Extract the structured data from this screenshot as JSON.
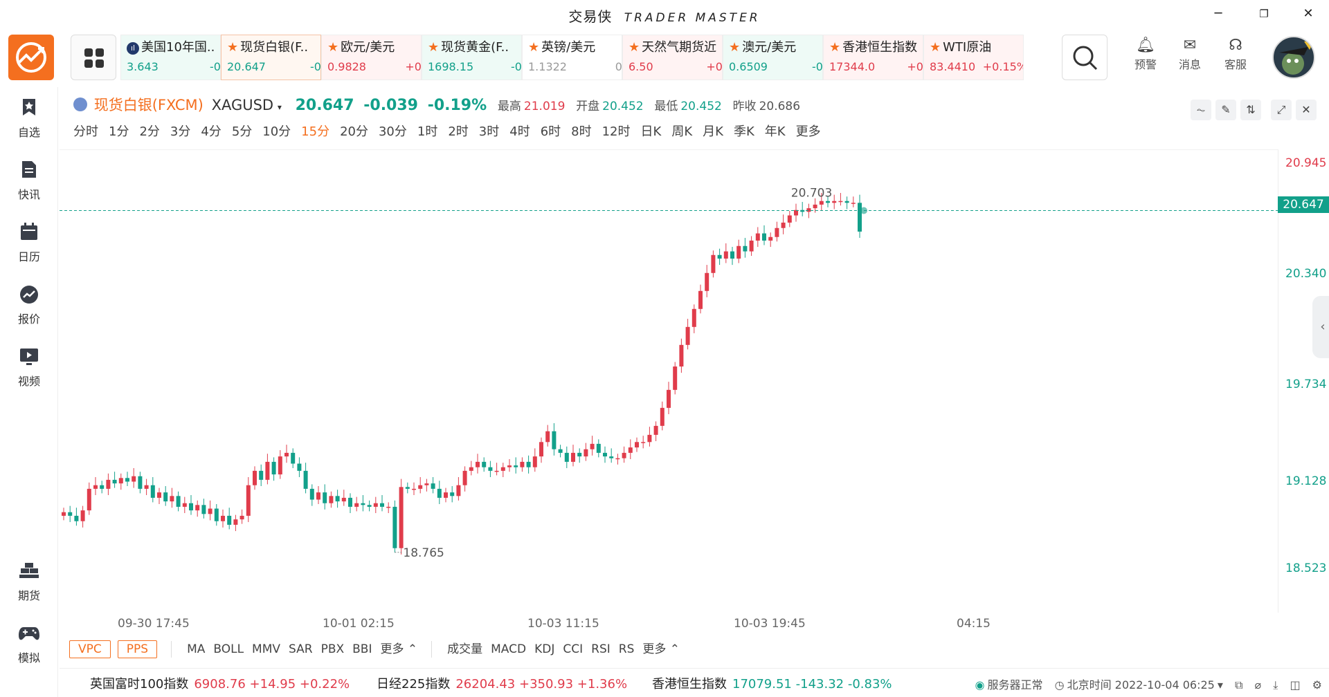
{
  "window": {
    "title_cn": "交易侠",
    "title_en": "TRADER MASTER",
    "minimize": "─",
    "restore": "❐",
    "close": "✕"
  },
  "ticker": [
    {
      "name": "美国10年国..",
      "price": "3.643",
      "change": "-0.",
      "dir": "down",
      "icon": "bar-chart-icon",
      "bg": "down"
    },
    {
      "name": "现货白银(F..",
      "price": "20.647",
      "change": "-0.",
      "dir": "down",
      "icon": "star-icon",
      "bg": "sel"
    },
    {
      "name": "欧元/美元",
      "price": "0.9828",
      "change": "+0.",
      "dir": "up",
      "icon": "star-icon",
      "bg": "up"
    },
    {
      "name": "现货黄金(F..",
      "price": "1698.15",
      "change": "-0.",
      "dir": "down",
      "icon": "star-icon",
      "bg": "down"
    },
    {
      "name": "英镑/美元",
      "price": "1.1322",
      "change": "0.",
      "dir": "flat",
      "icon": "star-icon",
      "bg": "none"
    },
    {
      "name": "天然气期货近",
      "price": "6.50",
      "change": "+0.",
      "dir": "up",
      "icon": "star-icon",
      "bg": "up"
    },
    {
      "name": "澳元/美元",
      "price": "0.6509",
      "change": "-0.",
      "dir": "down",
      "icon": "star-icon",
      "bg": "down"
    },
    {
      "name": "香港恒生指数",
      "price": "17344.0",
      "change": "+0.",
      "dir": "up",
      "icon": "star-icon",
      "bg": "up"
    },
    {
      "name": "WTI原油",
      "price": "83.4410",
      "change": "+0.15%",
      "dir": "up",
      "icon": "star-icon",
      "bg": "up"
    }
  ],
  "header_icons": [
    {
      "label": "预警",
      "icon": "bell-icon"
    },
    {
      "label": "消息",
      "icon": "mail-icon"
    },
    {
      "label": "客服",
      "icon": "headset-icon"
    }
  ],
  "sidebar": {
    "top": [
      {
        "label": "自选",
        "icon": "bookmark-icon"
      },
      {
        "label": "快讯",
        "icon": "document-icon"
      },
      {
        "label": "日历",
        "icon": "calendar-icon"
      },
      {
        "label": "报价",
        "icon": "trend-icon"
      },
      {
        "label": "视频",
        "icon": "video-icon"
      }
    ],
    "bottom": [
      {
        "label": "期货",
        "icon": "gold-bars-icon"
      },
      {
        "label": "模拟",
        "icon": "gamepad-icon"
      }
    ]
  },
  "symbol": {
    "name": "现货白银(FXCM)",
    "code": "XAGUSD",
    "price": "20.647",
    "change": "-0.039",
    "change_pct": "-0.19%",
    "high_label": "最高",
    "high": "21.019",
    "open_label": "开盘",
    "open": "20.452",
    "low_label": "最低",
    "low": "20.452",
    "prev_label": "昨收",
    "prev": "20.686"
  },
  "periods": [
    "分时",
    "1分",
    "2分",
    "3分",
    "4分",
    "5分",
    "10分",
    "15分",
    "20分",
    "30分",
    "1时",
    "2时",
    "3时",
    "4时",
    "6时",
    "8时",
    "12时",
    "日K",
    "周K",
    "月K",
    "季K",
    "年K",
    "更多"
  ],
  "active_period": "15分",
  "chart_data": {
    "type": "candlestick",
    "ylim": [
      18.523,
      20.945
    ],
    "yticks": [
      "20.945",
      "20.340",
      "19.734",
      "19.128",
      "18.523"
    ],
    "current_price": "20.647",
    "xticks": [
      "09-30 17:45",
      "10-01 02:15",
      "10-03 11:15",
      "10-03 19:45",
      "04:15"
    ],
    "max_label": "20.703",
    "min_label": "18.765",
    "closes": [
      18.97,
      18.95,
      18.92,
      18.98,
      19.1,
      19.12,
      19.1,
      19.15,
      19.13,
      19.16,
      19.14,
      19.17,
      19.1,
      19.12,
      19.05,
      19.08,
      19.03,
      19.06,
      19.0,
      19.02,
      18.98,
      19.01,
      18.96,
      18.99,
      18.92,
      18.95,
      18.9,
      18.93,
      18.95,
      19.12,
      19.2,
      19.15,
      19.25,
      19.18,
      19.28,
      19.3,
      19.24,
      19.2,
      19.1,
      19.04,
      19.08,
      19.02,
      19.06,
      19.03,
      19.05,
      19.0,
      19.02,
      19.01,
      19.0,
      19.02,
      19.0,
      19.0,
      18.77,
      19.11,
      19.1,
      19.1,
      19.12,
      19.13,
      19.1,
      19.05,
      19.08,
      19.06,
      19.12,
      19.2,
      19.22,
      19.25,
      19.22,
      19.2,
      19.2,
      19.22,
      19.23,
      19.22,
      19.25,
      19.22,
      19.28,
      19.36,
      19.42,
      19.32,
      19.3,
      19.25,
      19.3,
      19.28,
      19.32,
      19.35,
      19.3,
      19.28,
      19.27,
      19.27,
      19.3,
      19.33,
      19.36,
      19.36,
      19.4,
      19.45,
      19.55,
      19.65,
      19.78,
      19.9,
      20.0,
      20.1,
      20.2,
      20.3,
      20.4,
      20.38,
      20.42,
      20.38,
      20.45,
      20.42,
      20.48,
      20.52,
      20.48,
      20.5,
      20.55,
      20.58,
      20.62,
      20.65,
      20.64,
      20.66,
      20.68,
      20.7,
      20.69,
      20.7,
      20.7,
      20.69,
      20.69,
      20.53
    ]
  },
  "indicators": {
    "boxes": [
      "VPC",
      "PPS"
    ],
    "main": [
      "MA",
      "BOLL",
      "MMV",
      "SAR",
      "PBX",
      "BBI",
      "更多 ⌃"
    ],
    "sub": [
      "成交量",
      "MACD",
      "KDJ",
      "CCI",
      "RSI",
      "RS",
      "更多 ⌃"
    ]
  },
  "statusbar": {
    "indices": [
      {
        "name": "英国富时100指数",
        "price": "6908.76",
        "change": "+14.95",
        "pct": "+0.22%",
        "dir": "up"
      },
      {
        "name": "日经225指数",
        "price": "26204.43",
        "change": "+350.93",
        "pct": "+1.36%",
        "dir": "up"
      },
      {
        "name": "香港恒生指数",
        "price": "17079.51",
        "change": "-143.32",
        "pct": "-0.83%",
        "dir": "down"
      }
    ],
    "server": "服务器正常",
    "time": "北京时间 2022-10-04 06:25"
  },
  "colors": {
    "accent": "#f46f1f",
    "up": "#e03c4b",
    "down": "#12a08a"
  }
}
